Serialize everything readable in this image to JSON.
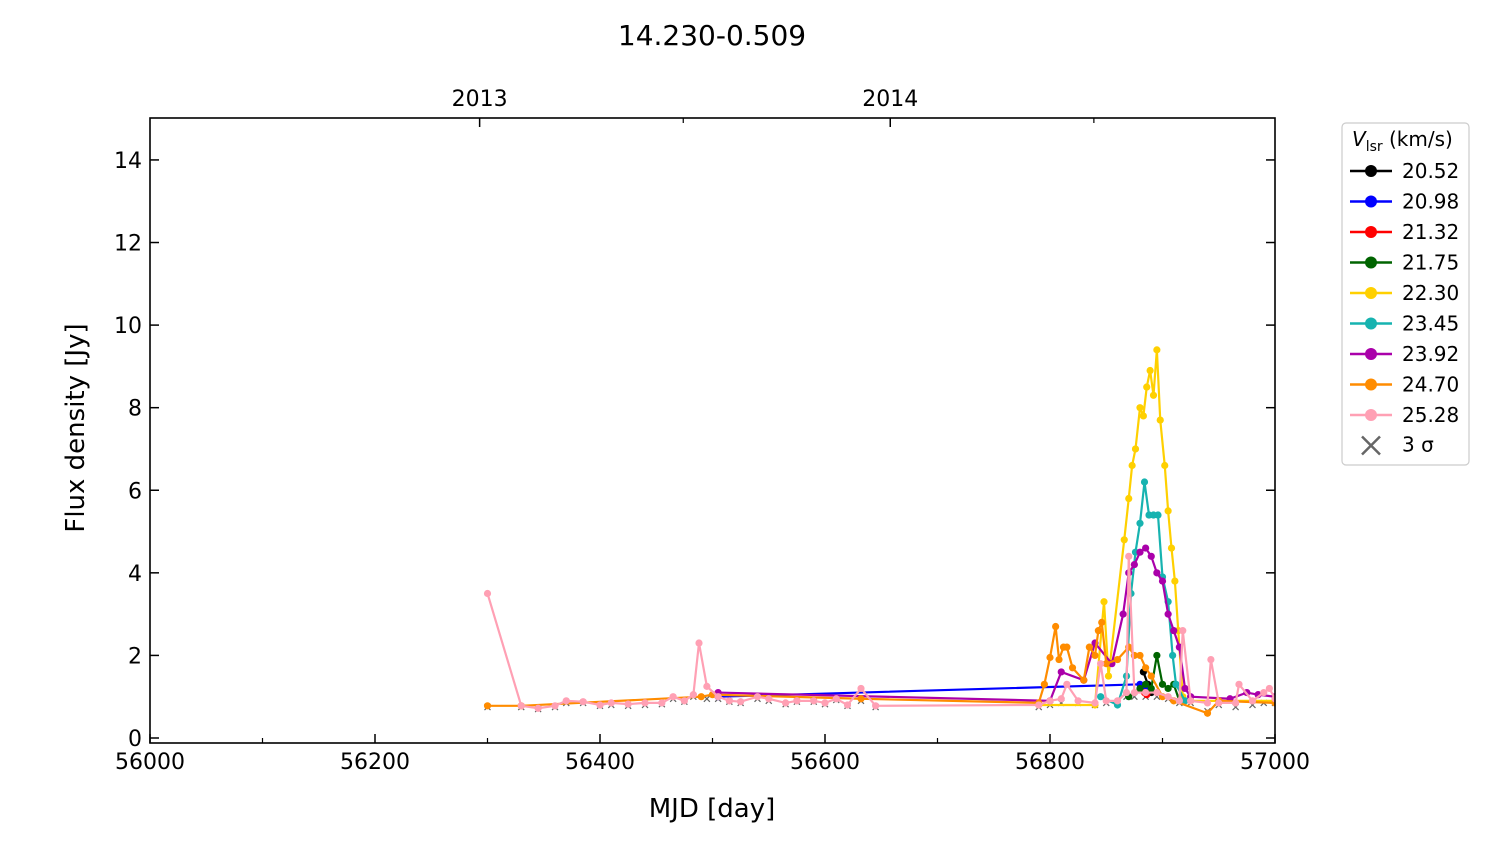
{
  "chart_data": {
    "type": "line",
    "title": "14.230-0.509",
    "xlabel": "MJD [day]",
    "ylabel": "Flux density [Jy]",
    "xlim": [
      56000,
      57000
    ],
    "ylim": [
      0,
      15
    ],
    "xticks": [
      56000,
      56200,
      56400,
      56600,
      56800,
      57000
    ],
    "xminor": [
      56100,
      56300,
      56500,
      56700,
      56900
    ],
    "yticks": [
      0,
      2,
      4,
      6,
      8,
      10,
      12,
      14
    ],
    "top_axis": {
      "ticks": [
        {
          "label": "2013",
          "mjd": 56293
        },
        {
          "label": "2014",
          "mjd": 56658
        }
      ],
      "minor": [
        56474,
        56839
      ]
    },
    "grid": false,
    "legend": {
      "title_main": "V",
      "title_sub": "lsr",
      "title_unit": " (km/s)",
      "placement": "outside-right",
      "sigma_label": "3 σ"
    },
    "series": [
      {
        "name": "20.52",
        "color": "#000000",
        "points": [
          [
            56883,
            1.6
          ],
          [
            56887,
            1.3
          ],
          [
            56890,
            1.1
          ]
        ]
      },
      {
        "name": "20.98",
        "color": "#0000ff",
        "points": [
          [
            56505,
            1.0
          ],
          [
            56880,
            1.3
          ],
          [
            56885,
            1.2
          ]
        ]
      },
      {
        "name": "21.32",
        "color": "#ff0000",
        "points": [
          [
            56884,
            1.1
          ],
          [
            56886,
            1.05
          ]
        ]
      },
      {
        "name": "21.75",
        "color": "#006400",
        "points": [
          [
            56870,
            1.0
          ],
          [
            56880,
            1.2
          ],
          [
            56885,
            1.3
          ],
          [
            56890,
            1.2
          ],
          [
            56895,
            2.0
          ],
          [
            56900,
            1.3
          ],
          [
            56905,
            1.2
          ],
          [
            56910,
            1.3
          ],
          [
            56915,
            0.9
          ]
        ]
      },
      {
        "name": "22.30",
        "color": "#ffd000",
        "points": [
          [
            56790,
            0.8
          ],
          [
            56840,
            0.8
          ],
          [
            56848,
            3.3
          ],
          [
            56852,
            1.5
          ],
          [
            56866,
            4.8
          ],
          [
            56870,
            5.8
          ],
          [
            56873,
            6.6
          ],
          [
            56876,
            7.0
          ],
          [
            56880,
            8.0
          ],
          [
            56883,
            7.8
          ],
          [
            56886,
            8.5
          ],
          [
            56889,
            8.9
          ],
          [
            56892,
            8.3
          ],
          [
            56895,
            9.4
          ],
          [
            56898,
            7.7
          ],
          [
            56902,
            6.6
          ],
          [
            56905,
            5.5
          ],
          [
            56908,
            4.6
          ],
          [
            56911,
            3.8
          ],
          [
            56914,
            2.6
          ],
          [
            56918,
            1.0
          ],
          [
            56925,
            0.9
          ],
          [
            57000,
            0.9
          ]
        ]
      },
      {
        "name": "23.45",
        "color": "#17b3b0",
        "points": [
          [
            56845,
            1.0
          ],
          [
            56860,
            0.8
          ],
          [
            56868,
            1.5
          ],
          [
            56872,
            3.5
          ],
          [
            56876,
            4.5
          ],
          [
            56880,
            5.2
          ],
          [
            56884,
            6.2
          ],
          [
            56888,
            5.4
          ],
          [
            56892,
            5.4
          ],
          [
            56896,
            5.4
          ],
          [
            56900,
            3.9
          ],
          [
            56905,
            3.3
          ],
          [
            56909,
            2.0
          ],
          [
            56912,
            1.3
          ],
          [
            56920,
            0.9
          ]
        ]
      },
      {
        "name": "23.92",
        "color": "#aa00aa",
        "points": [
          [
            56505,
            1.1
          ],
          [
            56800,
            0.9
          ],
          [
            56810,
            1.6
          ],
          [
            56830,
            1.4
          ],
          [
            56840,
            2.3
          ],
          [
            56855,
            1.8
          ],
          [
            56865,
            3.0
          ],
          [
            56870,
            4.0
          ],
          [
            56875,
            4.2
          ],
          [
            56880,
            4.5
          ],
          [
            56885,
            4.6
          ],
          [
            56890,
            4.4
          ],
          [
            56895,
            4.0
          ],
          [
            56900,
            3.8
          ],
          [
            56905,
            3.0
          ],
          [
            56910,
            2.6
          ],
          [
            56915,
            2.2
          ],
          [
            56920,
            1.2
          ],
          [
            56925,
            1.0
          ],
          [
            56960,
            0.95
          ],
          [
            56975,
            1.1
          ],
          [
            56985,
            1.05
          ],
          [
            57000,
            1.0
          ]
        ]
      },
      {
        "name": "24.70",
        "color": "#ff8c00",
        "points": [
          [
            56300,
            0.78
          ],
          [
            56330,
            0.78
          ],
          [
            56490,
            1.0
          ],
          [
            56500,
            1.05
          ],
          [
            56632,
            0.95
          ],
          [
            56790,
            0.85
          ],
          [
            56795,
            1.3
          ],
          [
            56800,
            1.95
          ],
          [
            56805,
            2.7
          ],
          [
            56808,
            1.9
          ],
          [
            56812,
            2.2
          ],
          [
            56815,
            2.2
          ],
          [
            56820,
            1.7
          ],
          [
            56830,
            1.4
          ],
          [
            56835,
            2.2
          ],
          [
            56840,
            2.0
          ],
          [
            56843,
            2.6
          ],
          [
            56846,
            2.8
          ],
          [
            56850,
            1.8
          ],
          [
            56860,
            1.9
          ],
          [
            56870,
            2.2
          ],
          [
            56875,
            2.0
          ],
          [
            56880,
            2.0
          ],
          [
            56885,
            1.7
          ],
          [
            56890,
            1.5
          ],
          [
            56900,
            1.0
          ],
          [
            56910,
            0.9
          ],
          [
            56940,
            0.6
          ],
          [
            56950,
            0.9
          ],
          [
            57000,
            0.85
          ]
        ]
      },
      {
        "name": "25.28",
        "color": "#ffa0b4",
        "points": [
          [
            56300,
            3.5
          ],
          [
            56330,
            0.78
          ],
          [
            56345,
            0.72
          ],
          [
            56360,
            0.78
          ],
          [
            56370,
            0.9
          ],
          [
            56385,
            0.88
          ],
          [
            56400,
            0.8
          ],
          [
            56410,
            0.85
          ],
          [
            56425,
            0.82
          ],
          [
            56440,
            0.85
          ],
          [
            56455,
            0.85
          ],
          [
            56465,
            1.0
          ],
          [
            56475,
            0.9
          ],
          [
            56483,
            1.05
          ],
          [
            56488,
            2.3
          ],
          [
            56495,
            1.25
          ],
          [
            56505,
            1.0
          ],
          [
            56515,
            0.9
          ],
          [
            56525,
            0.88
          ],
          [
            56540,
            1.0
          ],
          [
            56550,
            0.95
          ],
          [
            56565,
            0.85
          ],
          [
            56575,
            0.9
          ],
          [
            56590,
            0.9
          ],
          [
            56600,
            0.85
          ],
          [
            56610,
            0.95
          ],
          [
            56620,
            0.8
          ],
          [
            56632,
            1.2
          ],
          [
            56645,
            0.78
          ],
          [
            56790,
            0.8
          ],
          [
            56800,
            0.9
          ],
          [
            56810,
            0.95
          ],
          [
            56815,
            1.3
          ],
          [
            56825,
            0.9
          ],
          [
            56840,
            0.85
          ],
          [
            56845,
            1.8
          ],
          [
            56850,
            0.9
          ],
          [
            56860,
            0.9
          ],
          [
            56868,
            1.1
          ],
          [
            56870,
            4.4
          ],
          [
            56875,
            1.1
          ],
          [
            56885,
            1.1
          ],
          [
            56895,
            1.1
          ],
          [
            56905,
            1.0
          ],
          [
            56915,
            0.9
          ],
          [
            56918,
            2.6
          ],
          [
            56925,
            0.9
          ],
          [
            56940,
            0.85
          ],
          [
            56943,
            1.9
          ],
          [
            56950,
            0.85
          ],
          [
            56965,
            0.85
          ],
          [
            56968,
            1.3
          ],
          [
            56980,
            0.9
          ],
          [
            56990,
            1.1
          ],
          [
            56995,
            1.2
          ],
          [
            57000,
            0.95
          ]
        ]
      }
    ],
    "sigma3": {
      "color": "#666666",
      "points": [
        [
          56300,
          0.75
        ],
        [
          56330,
          0.75
        ],
        [
          56345,
          0.7
        ],
        [
          56360,
          0.75
        ],
        [
          56370,
          0.85
        ],
        [
          56385,
          0.85
        ],
        [
          56400,
          0.78
        ],
        [
          56410,
          0.8
        ],
        [
          56425,
          0.78
        ],
        [
          56440,
          0.8
        ],
        [
          56455,
          0.82
        ],
        [
          56465,
          0.95
        ],
        [
          56475,
          0.88
        ],
        [
          56483,
          1.0
        ],
        [
          56495,
          0.95
        ],
        [
          56505,
          0.95
        ],
        [
          56515,
          0.88
        ],
        [
          56525,
          0.85
        ],
        [
          56540,
          0.95
        ],
        [
          56550,
          0.9
        ],
        [
          56565,
          0.82
        ],
        [
          56575,
          0.88
        ],
        [
          56590,
          0.88
        ],
        [
          56600,
          0.82
        ],
        [
          56610,
          0.92
        ],
        [
          56620,
          0.78
        ],
        [
          56632,
          0.9
        ],
        [
          56645,
          0.75
        ],
        [
          56790,
          0.75
        ],
        [
          56800,
          0.8
        ],
        [
          56810,
          0.85
        ],
        [
          56825,
          0.85
        ],
        [
          56840,
          0.8
        ],
        [
          56850,
          0.85
        ],
        [
          56860,
          0.85
        ],
        [
          56868,
          1.0
        ],
        [
          56875,
          1.0
        ],
        [
          56885,
          1.0
        ],
        [
          56895,
          1.0
        ],
        [
          56905,
          0.95
        ],
        [
          56915,
          0.85
        ],
        [
          56925,
          0.85
        ],
        [
          56940,
          0.65
        ],
        [
          56950,
          0.8
        ],
        [
          56965,
          0.75
        ],
        [
          56980,
          0.8
        ],
        [
          56990,
          0.85
        ],
        [
          57000,
          0.85
        ]
      ]
    }
  }
}
